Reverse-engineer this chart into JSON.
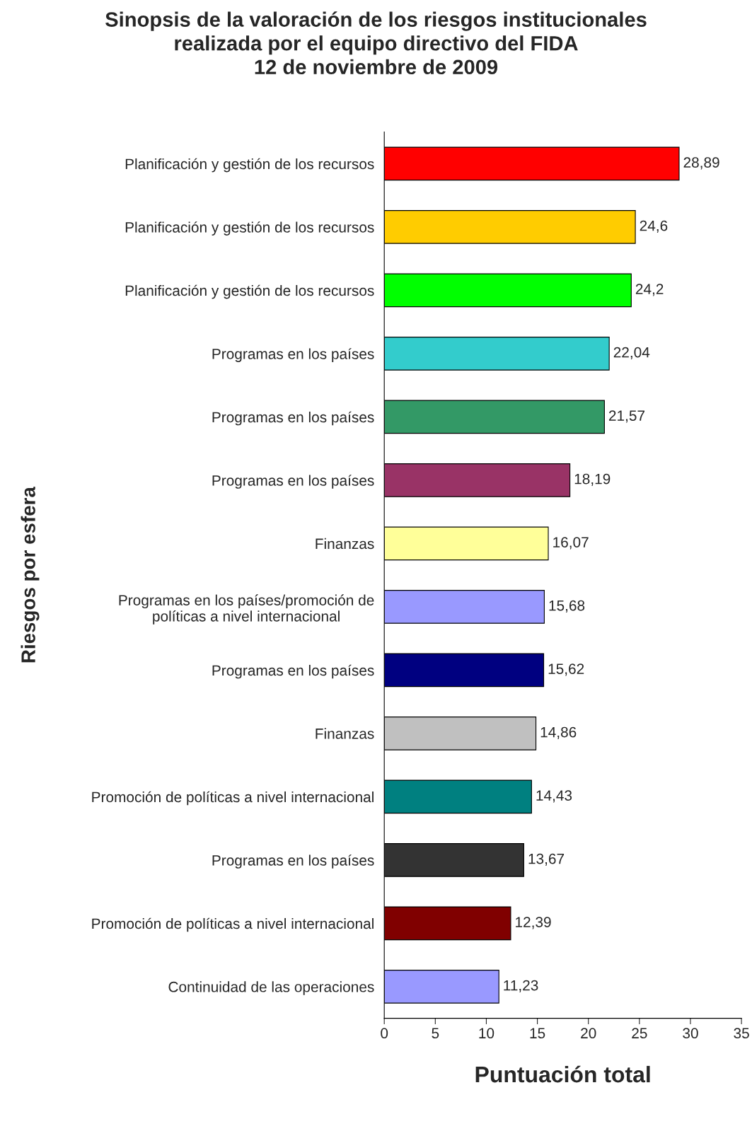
{
  "chart_data": {
    "type": "bar",
    "orientation": "horizontal",
    "title": "Sinopsis de la valoración de los riesgos institucionales\nrealizada por el equipo directivo del FIDA\n12 de noviembre de 2009",
    "xlabel": "Puntuación total",
    "ylabel": "Riesgos por esfera",
    "categories": [
      "Planificación y gestión de los recursos",
      "Planificación y gestión de los recursos",
      "Planificación y gestión de los recursos",
      "Programas en los países",
      "Programas en los países",
      "Programas en los países",
      "Finanzas",
      "Programas en los países/promoción de\npolíticas a nivel internacional",
      "Programas en los países",
      "Finanzas",
      "Promoción de políticas a nivel internacional",
      "Programas en los países",
      "Promoción de políticas a nivel internacional",
      "Continuidad de las operaciones"
    ],
    "values": [
      28.89,
      24.6,
      24.2,
      22.04,
      21.57,
      18.19,
      16.07,
      15.68,
      15.62,
      14.86,
      14.43,
      13.67,
      12.39,
      11.23
    ],
    "value_labels": [
      "28,89",
      "24,6",
      "24,2",
      "22,04",
      "21,57",
      "18,19",
      "16,07",
      "15,68",
      "15,62",
      "14,86",
      "14,43",
      "13,67",
      "12,39",
      "11,23"
    ],
    "colors": [
      "#ff0000",
      "#ffcc00",
      "#00ff00",
      "#33cccc",
      "#339966",
      "#993366",
      "#ffff99",
      "#9999ff",
      "#000080",
      "#c0c0c0",
      "#008080",
      "#333333",
      "#800000",
      "#9999ff"
    ],
    "xlim": [
      0,
      35
    ],
    "xticks": [
      0,
      5,
      10,
      15,
      20,
      25,
      30,
      35
    ]
  }
}
